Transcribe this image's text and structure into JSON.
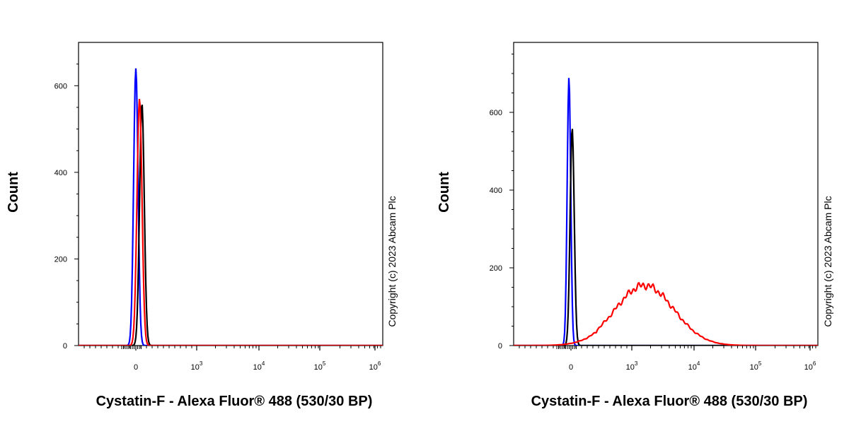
{
  "chart_data": [
    {
      "type": "line",
      "title": "",
      "xlabel": "Cystatin-F - Alexa Fluor® 488 (530/30 BP)",
      "ylabel": "Count",
      "x_scale": "biexponential",
      "ylim": [
        0,
        700
      ],
      "y_ticks": [
        "0",
        "200",
        "400",
        "600"
      ],
      "x_ticks": [
        {
          "base": "0",
          "exp": ""
        },
        {
          "base": "10",
          "exp": "3"
        },
        {
          "base": "10",
          "exp": "4"
        },
        {
          "base": "10",
          "exp": "5"
        },
        {
          "base": "10",
          "exp": "6"
        }
      ],
      "copyright": "Copyright (c) 2023 Abcam Plc",
      "series": [
        {
          "color": "#0000ff",
          "peak_x": 0,
          "peak_count": 640,
          "width": 0.15
        },
        {
          "color": "#000000",
          "peak_x": 100,
          "peak_count": 560,
          "width": 0.16
        },
        {
          "color": "#ff0000",
          "peak_x": 60,
          "peak_count": 570,
          "width": 0.17
        }
      ]
    },
    {
      "type": "line",
      "title": "",
      "xlabel": "Cystatin-F - Alexa Fluor® 488 (530/30 BP)",
      "ylabel": "Count",
      "x_scale": "biexponential",
      "ylim": [
        0,
        780
      ],
      "y_ticks": [
        "0",
        "200",
        "400",
        "600"
      ],
      "x_ticks": [
        {
          "base": "0",
          "exp": ""
        },
        {
          "base": "10",
          "exp": "3"
        },
        {
          "base": "10",
          "exp": "4"
        },
        {
          "base": "10",
          "exp": "5"
        },
        {
          "base": "10",
          "exp": "6"
        }
      ],
      "copyright": "Copyright (c) 2023 Abcam Plc",
      "series": [
        {
          "color": "#0000ff",
          "peak_x": -30,
          "peak_count": 690,
          "width": 0.12
        },
        {
          "color": "#000000",
          "peak_x": 20,
          "peak_count": 560,
          "width": 0.14
        },
        {
          "color": "#ff0000",
          "peak_x": 1600,
          "peak_count": 155,
          "width": 0.85
        }
      ]
    }
  ]
}
